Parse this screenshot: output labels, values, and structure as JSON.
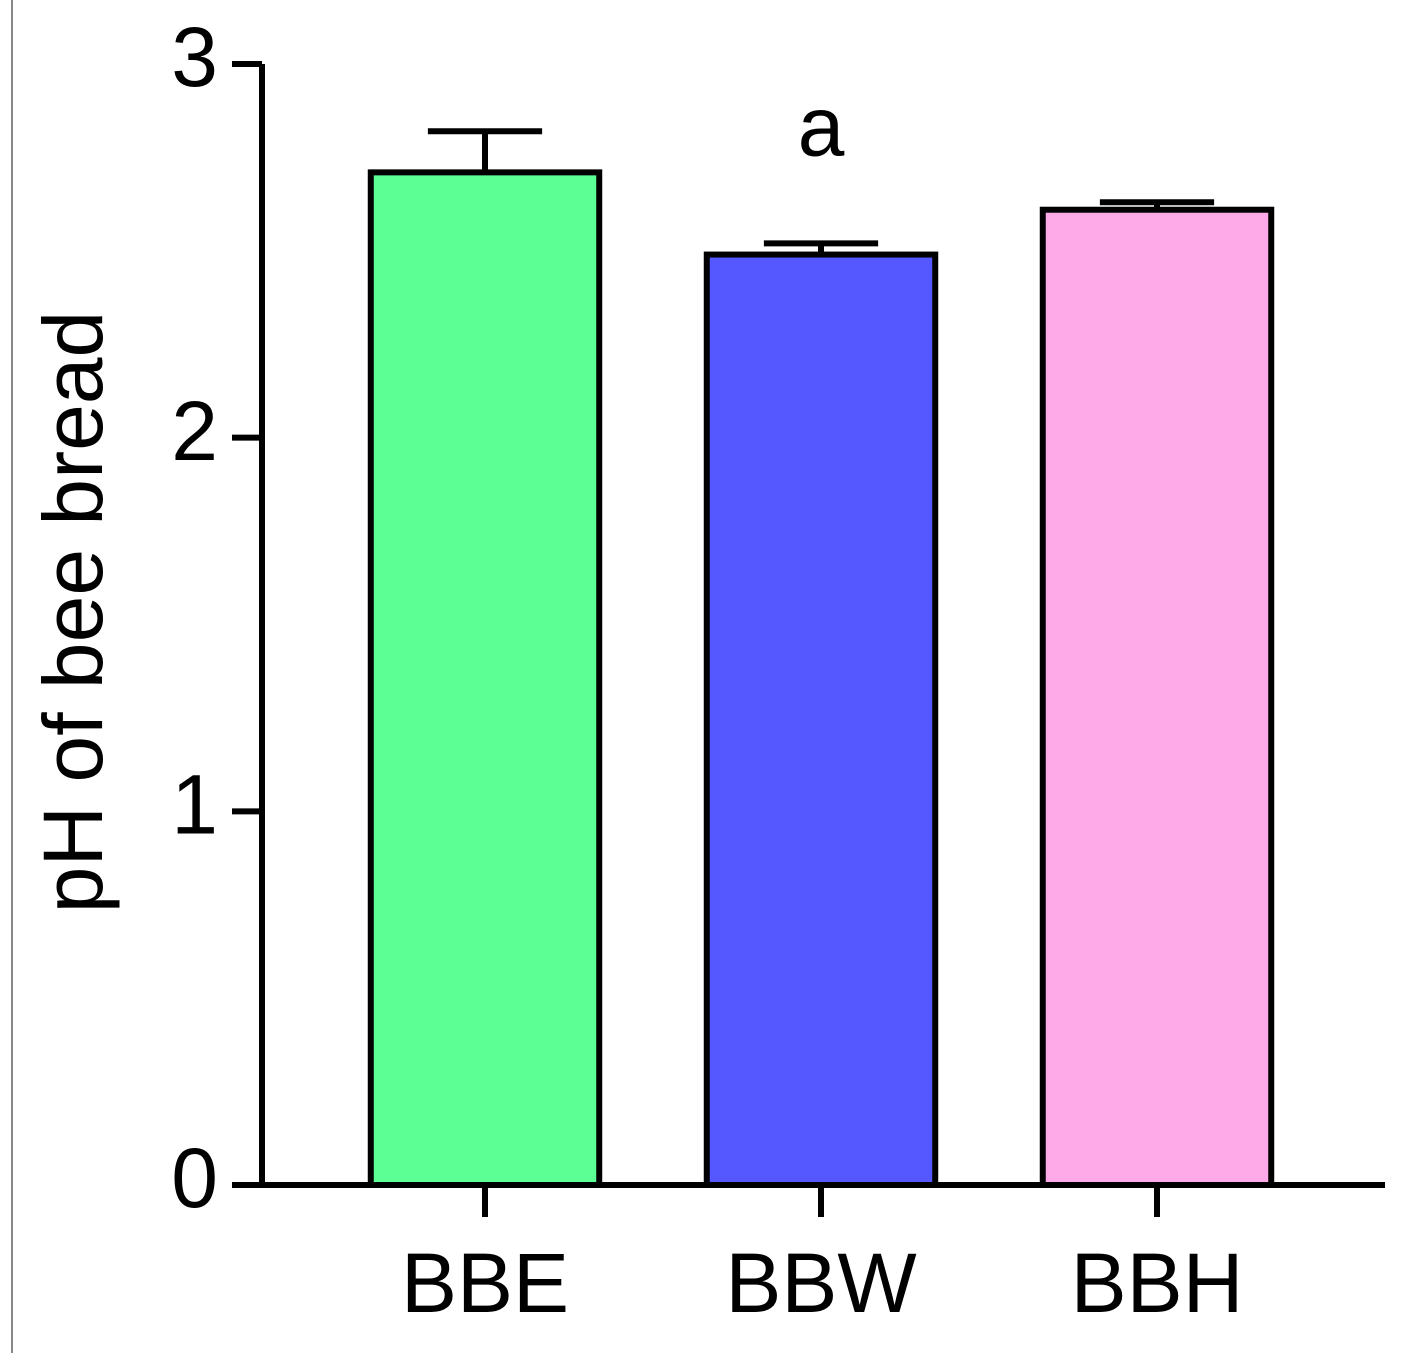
{
  "chart_data": {
    "type": "bar",
    "y_label": "pH of bee bread",
    "categories": [
      "BBE",
      "BBW",
      "BBH"
    ],
    "values": [
      2.71,
      2.49,
      2.61
    ],
    "errors": [
      0.11,
      0.03,
      0.02
    ],
    "colors": [
      "#5cff94",
      "#5558ff",
      "#ffaae8"
    ],
    "ylim": [
      0,
      3
    ],
    "yticks": [
      0,
      1,
      2,
      3
    ],
    "grid": false,
    "annotations": [
      {
        "text": "a",
        "x": "BBW"
      }
    ]
  }
}
